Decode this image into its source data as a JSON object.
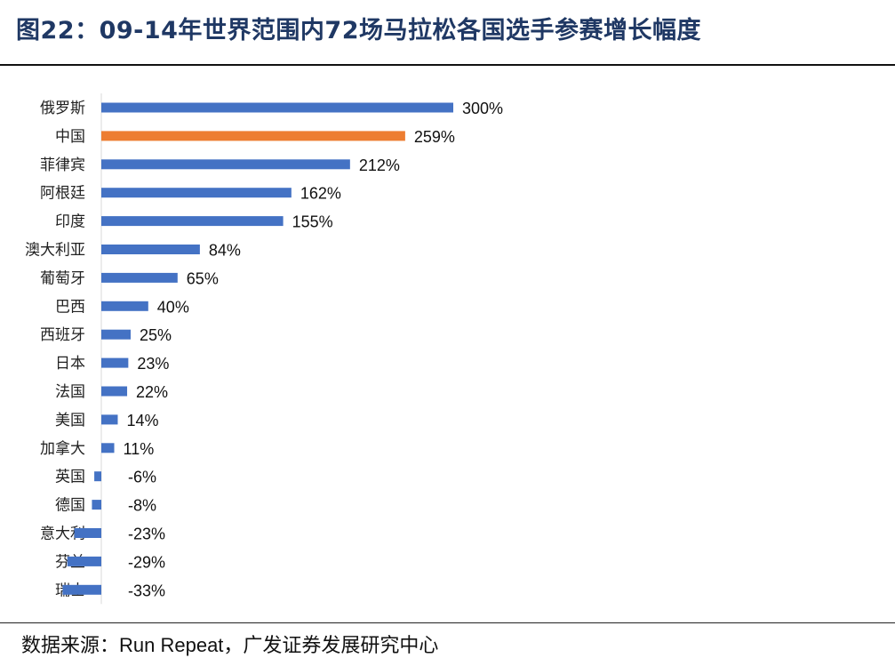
{
  "header": {
    "title": "图22：09-14年世界范围内72场马拉松各国选手参赛增长幅度"
  },
  "footer": {
    "source": "数据来源：Run Repeat，广发证券发展研究中心"
  },
  "colors": {
    "default_bar": "#4472c4",
    "highlight_bar": "#ed7d31",
    "title": "#1f3864"
  },
  "chart_data": {
    "type": "bar",
    "orientation": "horizontal",
    "title": "",
    "xlabel": "",
    "ylabel": "",
    "unit": "%",
    "xlim": [
      -40,
      300
    ],
    "grid": false,
    "legend": "none",
    "highlight_category": "中国",
    "categories": [
      "俄罗斯",
      "中国",
      "菲律宾",
      "阿根廷",
      "印度",
      "澳大利亚",
      "葡萄牙",
      "巴西",
      "西班牙",
      "日本",
      "法国",
      "美国",
      "加拿大",
      "英国",
      "德国",
      "意大利",
      "芬兰",
      "瑞士"
    ],
    "values": [
      300,
      259,
      212,
      162,
      155,
      84,
      65,
      40,
      25,
      23,
      22,
      14,
      11,
      -6,
      -8,
      -23,
      -29,
      -33
    ],
    "labels": [
      "300%",
      "259%",
      "212%",
      "162%",
      "155%",
      "84%",
      "65%",
      "40%",
      "25%",
      "23%",
      "22%",
      "14%",
      "11%",
      "-6%",
      "-8%",
      "-23%",
      "-29%",
      "-33%"
    ]
  }
}
